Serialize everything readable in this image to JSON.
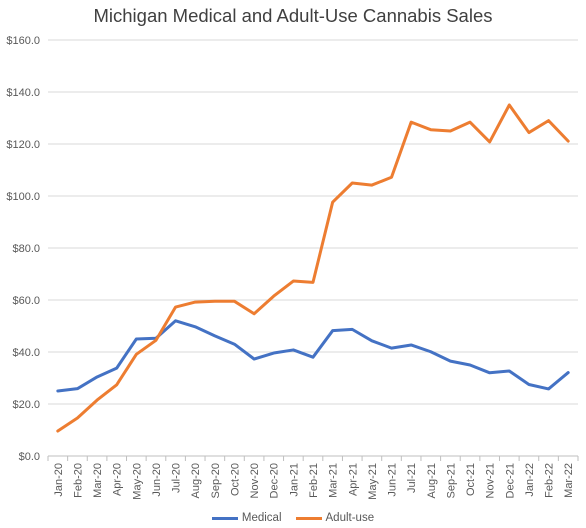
{
  "chart_data": {
    "type": "line",
    "title": "Michigan Medical and Adult-Use Cannabis Sales",
    "categories": [
      "Jan-20",
      "Feb-20",
      "Mar-20",
      "Apr-20",
      "May-20",
      "Jun-20",
      "Jul-20",
      "Aug-20",
      "Sep-20",
      "Oct-20",
      "Nov-20",
      "Dec-20",
      "Jan-21",
      "Feb-21",
      "Mar-21",
      "Apr-21",
      "May-21",
      "Jun-21",
      "Jul-21",
      "Aug-21",
      "Sep-21",
      "Oct-21",
      "Nov-21",
      "Dec-21",
      "Jan-22",
      "Feb-22",
      "Mar-22"
    ],
    "series": [
      {
        "name": "Medical",
        "color": "#4472C4",
        "values": [
          25.0,
          25.9,
          30.4,
          33.8,
          45.0,
          45.3,
          52.0,
          49.7,
          46.2,
          43.0,
          37.3,
          39.6,
          40.8,
          38.0,
          48.2,
          48.7,
          44.3,
          41.5,
          42.7,
          40.1,
          36.5,
          35.0,
          32.0,
          32.7,
          27.5,
          25.8,
          32.1
        ]
      },
      {
        "name": "Adult-use",
        "color": "#ED7D31",
        "values": [
          9.6,
          14.6,
          21.5,
          27.4,
          39.1,
          44.5,
          57.3,
          59.2,
          59.5,
          59.5,
          54.7,
          61.5,
          67.3,
          66.8,
          97.6,
          105.0,
          104.2,
          107.2,
          128.4,
          125.5,
          125.0,
          128.4,
          120.8,
          135.0,
          124.4,
          129.0,
          121.1
        ]
      }
    ],
    "y_ticks": [
      "$0.0",
      "$20.0",
      "$40.0",
      "$60.0",
      "$80.0",
      "$100.0",
      "$120.0",
      "$140.0",
      "$160.0"
    ],
    "ylim": [
      0,
      160
    ],
    "grid": true,
    "legend_position": "bottom"
  }
}
